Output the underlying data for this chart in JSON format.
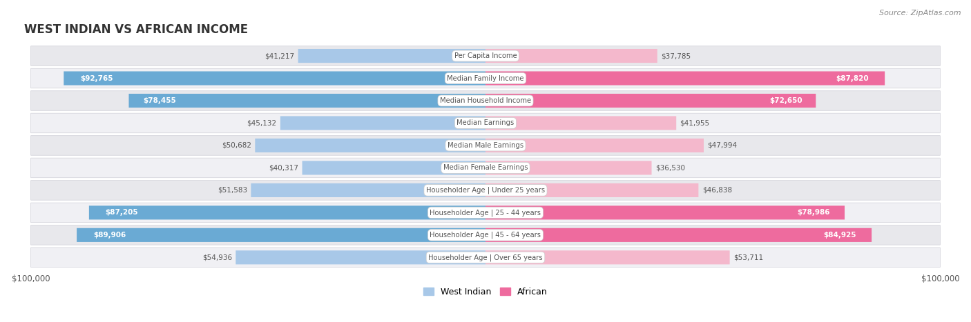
{
  "title": "WEST INDIAN VS AFRICAN INCOME",
  "source": "Source: ZipAtlas.com",
  "categories": [
    "Per Capita Income",
    "Median Family Income",
    "Median Household Income",
    "Median Earnings",
    "Median Male Earnings",
    "Median Female Earnings",
    "Householder Age | Under 25 years",
    "Householder Age | 25 - 44 years",
    "Householder Age | 45 - 64 years",
    "Householder Age | Over 65 years"
  ],
  "west_indian_values": [
    41217,
    92765,
    78455,
    45132,
    50682,
    40317,
    51583,
    87205,
    89906,
    54936
  ],
  "african_values": [
    37785,
    87820,
    72650,
    41955,
    47994,
    36530,
    46838,
    78986,
    84925,
    53711
  ],
  "west_indian_label": "West Indian",
  "african_label": "African",
  "wi_color_light": "#a8c8e8",
  "wi_color_dark": "#6aaad4",
  "af_color_light": "#f4b8cc",
  "af_color_dark": "#ee6b9e",
  "high_threshold": 70000,
  "max_value": 100000,
  "bg_color": "#ffffff",
  "row_bg_odd": "#e8e8ec",
  "row_bg_even": "#f0f0f4",
  "row_border_color": "#d0d0d8",
  "title_color": "#333333",
  "source_color": "#888888",
  "label_outside_color": "#555555",
  "label_inside_color": "#ffffff",
  "cat_label_bg": "#ffffff",
  "cat_label_color": "#555555"
}
